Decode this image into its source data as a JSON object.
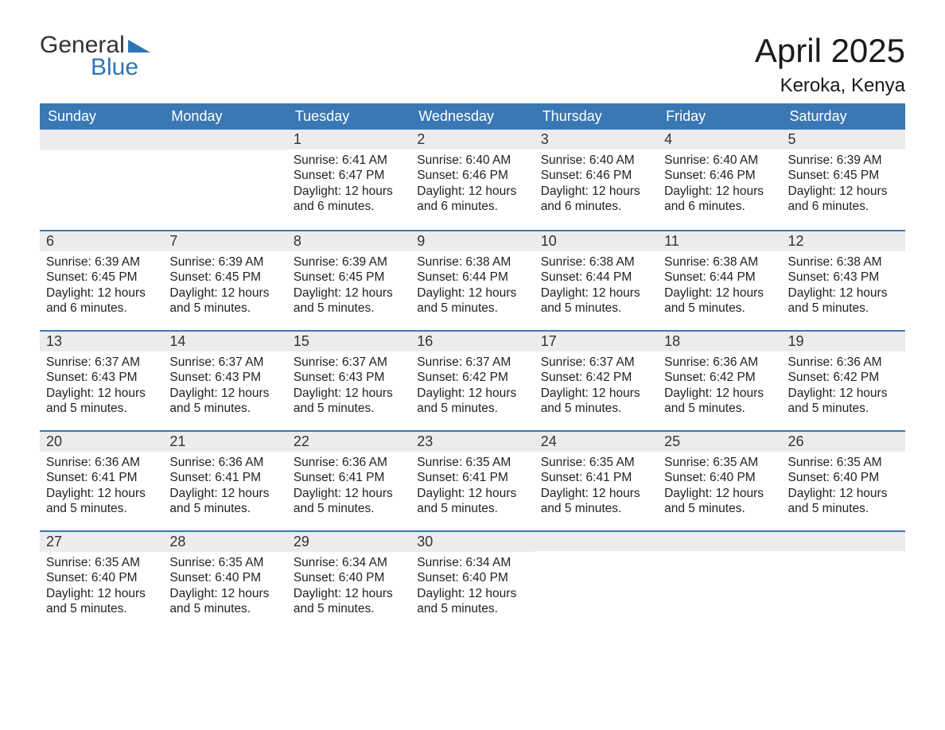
{
  "logo": {
    "text1": "General",
    "text2": "Blue",
    "accent_color": "#2e75b6",
    "text_color": "#333333"
  },
  "title": "April 2025",
  "location": "Keroka, Kenya",
  "colors": {
    "header_bg": "#3a78b5",
    "header_text": "#ffffff",
    "daynum_bg": "#ececec",
    "border_accent": "#3a78b5",
    "body_text": "#222222",
    "background": "#ffffff"
  },
  "typography": {
    "title_fontsize": 42,
    "location_fontsize": 24,
    "header_fontsize": 18,
    "daynum_fontsize": 18,
    "body_fontsize": 15.5
  },
  "weekdays": [
    "Sunday",
    "Monday",
    "Tuesday",
    "Wednesday",
    "Thursday",
    "Friday",
    "Saturday"
  ],
  "weeks": [
    [
      null,
      null,
      {
        "n": "1",
        "sr": "6:41 AM",
        "ss": "6:47 PM",
        "dl": "12 hours and 6 minutes."
      },
      {
        "n": "2",
        "sr": "6:40 AM",
        "ss": "6:46 PM",
        "dl": "12 hours and 6 minutes."
      },
      {
        "n": "3",
        "sr": "6:40 AM",
        "ss": "6:46 PM",
        "dl": "12 hours and 6 minutes."
      },
      {
        "n": "4",
        "sr": "6:40 AM",
        "ss": "6:46 PM",
        "dl": "12 hours and 6 minutes."
      },
      {
        "n": "5",
        "sr": "6:39 AM",
        "ss": "6:45 PM",
        "dl": "12 hours and 6 minutes."
      }
    ],
    [
      {
        "n": "6",
        "sr": "6:39 AM",
        "ss": "6:45 PM",
        "dl": "12 hours and 6 minutes."
      },
      {
        "n": "7",
        "sr": "6:39 AM",
        "ss": "6:45 PM",
        "dl": "12 hours and 5 minutes."
      },
      {
        "n": "8",
        "sr": "6:39 AM",
        "ss": "6:45 PM",
        "dl": "12 hours and 5 minutes."
      },
      {
        "n": "9",
        "sr": "6:38 AM",
        "ss": "6:44 PM",
        "dl": "12 hours and 5 minutes."
      },
      {
        "n": "10",
        "sr": "6:38 AM",
        "ss": "6:44 PM",
        "dl": "12 hours and 5 minutes."
      },
      {
        "n": "11",
        "sr": "6:38 AM",
        "ss": "6:44 PM",
        "dl": "12 hours and 5 minutes."
      },
      {
        "n": "12",
        "sr": "6:38 AM",
        "ss": "6:43 PM",
        "dl": "12 hours and 5 minutes."
      }
    ],
    [
      {
        "n": "13",
        "sr": "6:37 AM",
        "ss": "6:43 PM",
        "dl": "12 hours and 5 minutes."
      },
      {
        "n": "14",
        "sr": "6:37 AM",
        "ss": "6:43 PM",
        "dl": "12 hours and 5 minutes."
      },
      {
        "n": "15",
        "sr": "6:37 AM",
        "ss": "6:43 PM",
        "dl": "12 hours and 5 minutes."
      },
      {
        "n": "16",
        "sr": "6:37 AM",
        "ss": "6:42 PM",
        "dl": "12 hours and 5 minutes."
      },
      {
        "n": "17",
        "sr": "6:37 AM",
        "ss": "6:42 PM",
        "dl": "12 hours and 5 minutes."
      },
      {
        "n": "18",
        "sr": "6:36 AM",
        "ss": "6:42 PM",
        "dl": "12 hours and 5 minutes."
      },
      {
        "n": "19",
        "sr": "6:36 AM",
        "ss": "6:42 PM",
        "dl": "12 hours and 5 minutes."
      }
    ],
    [
      {
        "n": "20",
        "sr": "6:36 AM",
        "ss": "6:41 PM",
        "dl": "12 hours and 5 minutes."
      },
      {
        "n": "21",
        "sr": "6:36 AM",
        "ss": "6:41 PM",
        "dl": "12 hours and 5 minutes."
      },
      {
        "n": "22",
        "sr": "6:36 AM",
        "ss": "6:41 PM",
        "dl": "12 hours and 5 minutes."
      },
      {
        "n": "23",
        "sr": "6:35 AM",
        "ss": "6:41 PM",
        "dl": "12 hours and 5 minutes."
      },
      {
        "n": "24",
        "sr": "6:35 AM",
        "ss": "6:41 PM",
        "dl": "12 hours and 5 minutes."
      },
      {
        "n": "25",
        "sr": "6:35 AM",
        "ss": "6:40 PM",
        "dl": "12 hours and 5 minutes."
      },
      {
        "n": "26",
        "sr": "6:35 AM",
        "ss": "6:40 PM",
        "dl": "12 hours and 5 minutes."
      }
    ],
    [
      {
        "n": "27",
        "sr": "6:35 AM",
        "ss": "6:40 PM",
        "dl": "12 hours and 5 minutes."
      },
      {
        "n": "28",
        "sr": "6:35 AM",
        "ss": "6:40 PM",
        "dl": "12 hours and 5 minutes."
      },
      {
        "n": "29",
        "sr": "6:34 AM",
        "ss": "6:40 PM",
        "dl": "12 hours and 5 minutes."
      },
      {
        "n": "30",
        "sr": "6:34 AM",
        "ss": "6:40 PM",
        "dl": "12 hours and 5 minutes."
      },
      null,
      null,
      null
    ]
  ],
  "labels": {
    "sunrise": "Sunrise: ",
    "sunset": "Sunset: ",
    "daylight": "Daylight: "
  }
}
